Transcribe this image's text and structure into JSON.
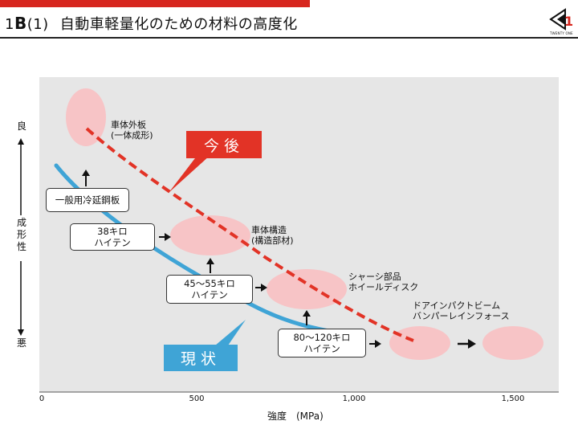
{
  "header": {
    "title_num": "1",
    "title_letter": "B",
    "title_sub": "(1)",
    "title_text": "自動車軽量化のための材料の高度化",
    "logo_text": "TWENTY ONE",
    "accent_color": "#d7261e"
  },
  "diagram": {
    "y_axis": {
      "top_label": "良",
      "mid_label": "成形性",
      "bottom_label": "悪"
    },
    "x_axis": {
      "label": "強度　(MPa)",
      "ticks": [
        "0",
        "500",
        "1,000",
        "1,500"
      ]
    },
    "materials": [
      {
        "id": "mild-steel",
        "text": "一般用冷延鋼板"
      },
      {
        "id": "hiten-38",
        "line1": "38キロ",
        "line2": "ハイテン"
      },
      {
        "id": "hiten-45-55",
        "line1": "45～55キロ",
        "line2": "ハイテン"
      },
      {
        "id": "hiten-80-120",
        "line1": "80～120キロ",
        "line2": "ハイテン"
      }
    ],
    "applications": [
      {
        "id": "outer-panel",
        "line1": "車体外板",
        "line2": "(一体成形)"
      },
      {
        "id": "body-structure",
        "line1": "車体構造",
        "line2": "(構造部材)"
      },
      {
        "id": "chassis",
        "line1": "シャーシ部品",
        "line2": "ホイールディスク"
      },
      {
        "id": "impact-beam",
        "line1": "ドアインパクトビーム",
        "line2": "バンパーレインフォース"
      }
    ],
    "callouts": {
      "future": "今後",
      "current": "現状"
    },
    "colors": {
      "future": "#e23326",
      "current": "#3fa4d6",
      "bubble": "#f7c4c6"
    }
  }
}
